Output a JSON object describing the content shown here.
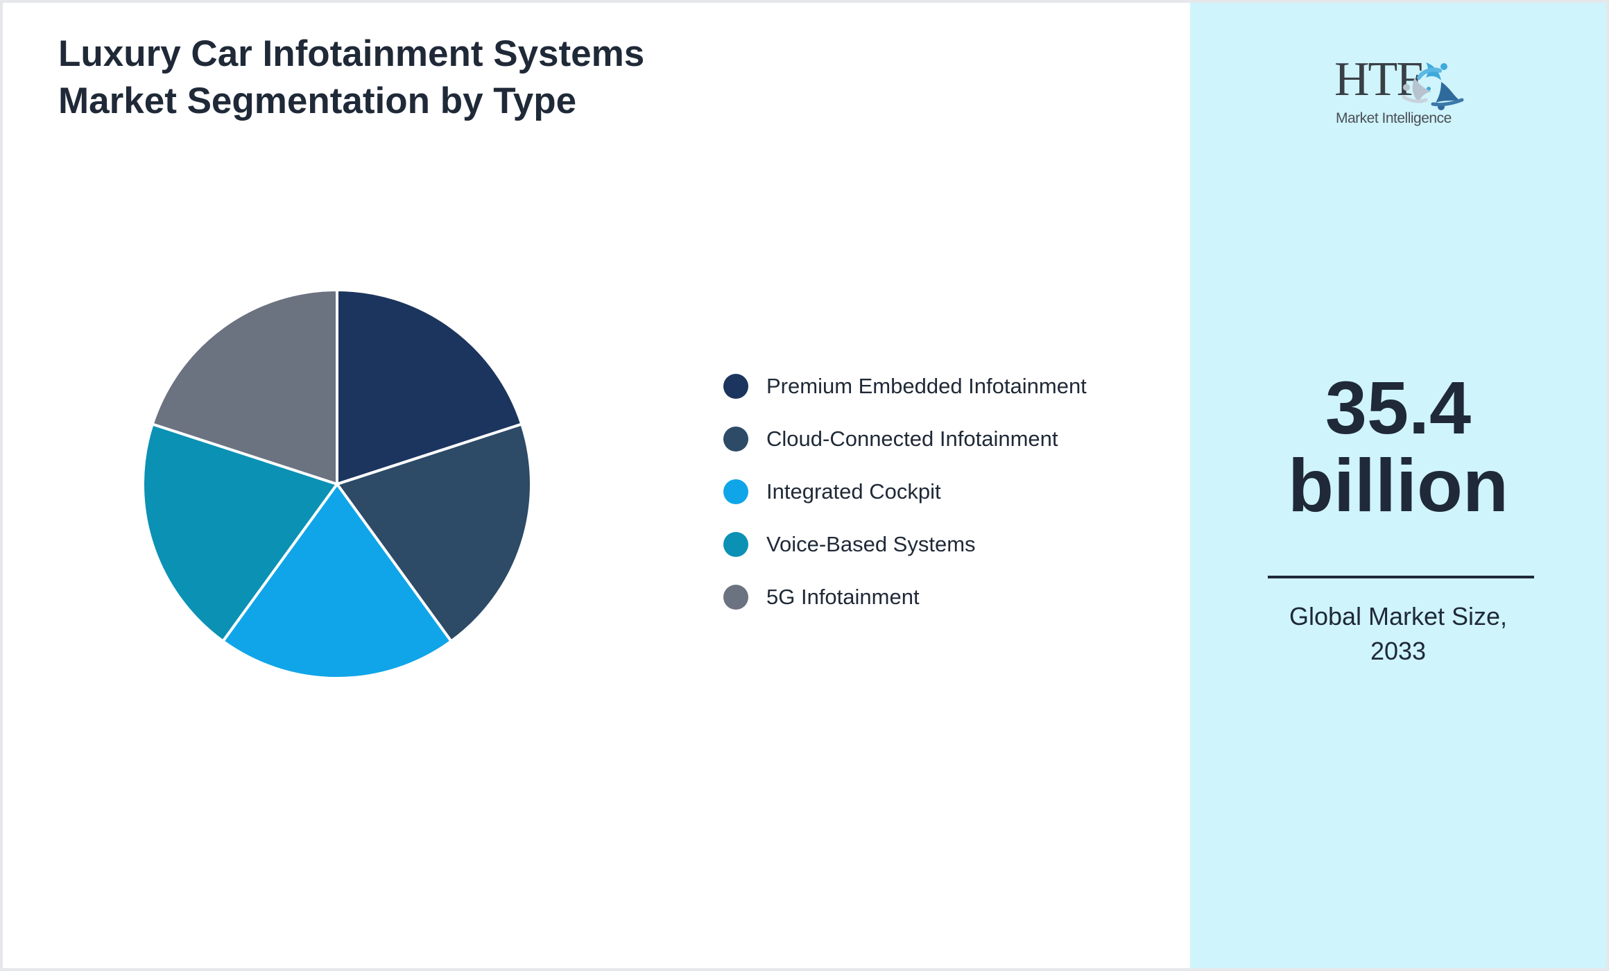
{
  "title": {
    "line1": "Luxury Car Infotainment Systems",
    "line2": "Market Segmentation by Type"
  },
  "legend": [
    {
      "label": "Premium Embedded Infotainment",
      "color": "#1c355e"
    },
    {
      "label": "Cloud-Connected Infotainment",
      "color": "#2d4a66"
    },
    {
      "label": "Integrated Cockpit",
      "color": "#10a5e8"
    },
    {
      "label": "Voice-Based Systems",
      "color": "#0a91b4"
    },
    {
      "label": "5G Infotainment",
      "color": "#6b7280"
    }
  ],
  "side_panel": {
    "logo": {
      "brand": "HTF",
      "tagline": "Market Intelligence",
      "icon": "three-figures-swirl-icon"
    },
    "stat_value": "35.4",
    "stat_unit": "billion",
    "caption_line1": "Global Market Size,",
    "caption_line2": "2033",
    "background": "#cff4fc"
  },
  "chart_data": {
    "type": "pie",
    "title": "Luxury Car Infotainment Systems Market Segmentation by Type",
    "categories": [
      "Premium Embedded Infotainment",
      "Cloud-Connected Infotainment",
      "Integrated Cockpit",
      "Voice-Based Systems",
      "5G Infotainment"
    ],
    "values": [
      20,
      20,
      20,
      20,
      20
    ],
    "colors": [
      "#1c355e",
      "#2d4a66",
      "#10a5e8",
      "#0a91b4",
      "#6b7280"
    ],
    "start_angle": "12 o'clock, clockwise",
    "legend_position": "right",
    "data_labels": false
  }
}
